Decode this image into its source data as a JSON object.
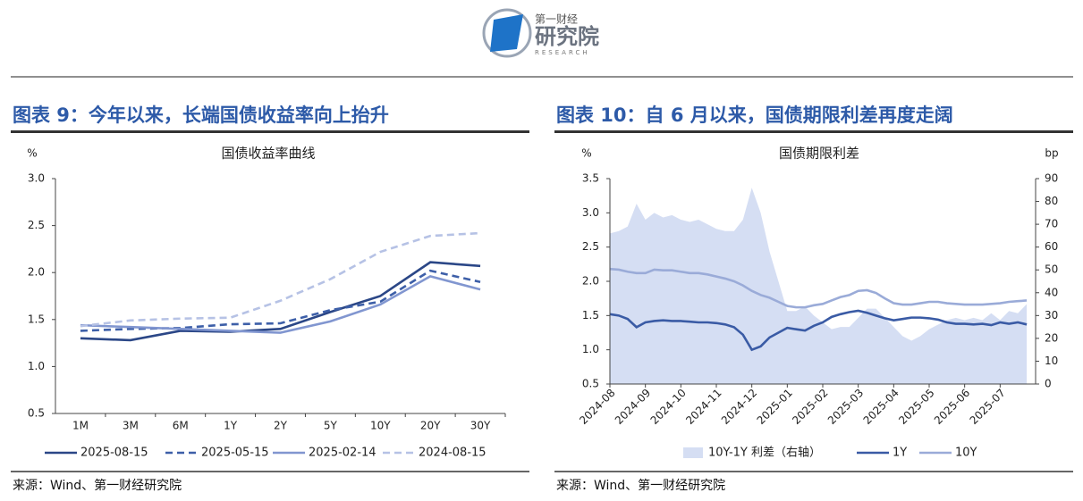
{
  "header": {
    "brand": "第一财经",
    "name": "研究院",
    "sub": "RESEARCH"
  },
  "chart_data": [
    {
      "type": "line",
      "caption": "图表 9：今年以来，长端国债收益率向上抬升",
      "title": "国债收益率曲线",
      "ylabel": "%",
      "source": "来源：Wind、第一财经研究院",
      "categories": [
        "1M",
        "3M",
        "6M",
        "1Y",
        "2Y",
        "5Y",
        "10Y",
        "20Y",
        "30Y"
      ],
      "series": [
        {
          "name": "2025-08-15",
          "color": "#2b4787",
          "style": "solid",
          "values": [
            1.3,
            1.28,
            1.38,
            1.37,
            1.4,
            1.58,
            1.75,
            2.11,
            2.07
          ]
        },
        {
          "name": "2025-05-15",
          "color": "#3d5fa8",
          "style": "dashed",
          "values": [
            1.38,
            1.4,
            1.41,
            1.45,
            1.46,
            1.6,
            1.69,
            2.02,
            1.9
          ]
        },
        {
          "name": "2025-02-14",
          "color": "#8196d0",
          "style": "solid",
          "values": [
            1.44,
            1.42,
            1.4,
            1.38,
            1.36,
            1.48,
            1.66,
            1.96,
            1.82
          ]
        },
        {
          "name": "2024-08-15",
          "color": "#b6c2e5",
          "style": "dashed",
          "values": [
            1.43,
            1.49,
            1.51,
            1.52,
            1.7,
            1.93,
            2.22,
            2.39,
            2.42
          ]
        }
      ],
      "ylim": [
        0.5,
        3.0
      ],
      "yticks": [
        {
          "value": 3.0,
          "label": "3.0"
        },
        2.5,
        {
          "value": 2.0,
          "label": "2.0"
        },
        1.5,
        {
          "value": 1.0,
          "label": "1.0"
        },
        0.5
      ],
      "grid": false,
      "legend": "bottom"
    },
    {
      "type": "line",
      "caption": "图表 10：自 6 月以来，国债期限利差再度走阔",
      "title": "国债期限利差",
      "ylabel": "%",
      "y2label": "bp",
      "source": "来源：Wind、第一财经研究院",
      "categories": [
        "2024-08",
        null,
        null,
        null,
        "2024-09",
        null,
        null,
        null,
        "2024-10",
        null,
        null,
        null,
        "2024-11",
        null,
        null,
        null,
        "2024-12",
        null,
        null,
        null,
        "2025-01",
        null,
        null,
        null,
        "2025-02",
        null,
        null,
        null,
        "2025-03",
        null,
        null,
        null,
        "2025-04",
        null,
        null,
        null,
        "2025-05",
        null,
        null,
        null,
        "2025-06",
        null,
        null,
        null,
        "2025-07",
        null,
        null,
        null
      ],
      "series": [
        {
          "name": "10Y-1Y 利差（右轴）",
          "color": "#d5def3",
          "style": "area",
          "axis": "y2",
          "values": [
            66,
            67,
            69,
            79,
            72,
            75,
            73,
            74,
            72,
            71,
            72,
            70,
            68,
            67,
            67,
            72,
            86,
            75,
            58,
            45,
            32,
            32,
            34,
            30,
            27,
            24,
            25,
            25,
            29,
            33,
            33,
            29,
            25,
            21,
            19,
            21,
            24,
            26,
            28,
            29,
            28,
            29,
            28,
            31,
            28,
            32,
            31,
            35
          ]
        },
        {
          "name": "1Y",
          "color": "#3a5ba5",
          "style": "solid",
          "values": [
            1.52,
            1.5,
            1.45,
            1.33,
            1.4,
            1.42,
            1.43,
            1.42,
            1.42,
            1.41,
            1.4,
            1.4,
            1.39,
            1.37,
            1.33,
            1.22,
            1.0,
            1.05,
            1.18,
            1.25,
            1.32,
            1.3,
            1.28,
            1.35,
            1.4,
            1.48,
            1.52,
            1.55,
            1.57,
            1.54,
            1.5,
            1.46,
            1.43,
            1.45,
            1.47,
            1.47,
            1.46,
            1.44,
            1.4,
            1.38,
            1.38,
            1.37,
            1.38,
            1.36,
            1.4,
            1.38,
            1.4,
            1.37
          ]
        },
        {
          "name": "10Y",
          "color": "#9aabd8",
          "style": "solid",
          "values": [
            2.18,
            2.17,
            2.14,
            2.12,
            2.12,
            2.17,
            2.16,
            2.16,
            2.14,
            2.12,
            2.12,
            2.1,
            2.07,
            2.04,
            2.0,
            1.94,
            1.86,
            1.8,
            1.76,
            1.7,
            1.64,
            1.62,
            1.62,
            1.65,
            1.67,
            1.72,
            1.77,
            1.8,
            1.86,
            1.87,
            1.83,
            1.75,
            1.68,
            1.66,
            1.66,
            1.68,
            1.7,
            1.7,
            1.68,
            1.67,
            1.66,
            1.66,
            1.66,
            1.67,
            1.68,
            1.7,
            1.71,
            1.72
          ]
        }
      ],
      "ylim": [
        0.5,
        3.5
      ],
      "yticks": [
        {
          "value": 3.5,
          "label": "3.5"
        },
        {
          "value": 3.0,
          "label": "3.0"
        },
        2.5,
        {
          "value": 2.0,
          "label": "2.0"
        },
        1.5,
        {
          "value": 1.0,
          "label": "1.0"
        },
        0.5
      ],
      "y2lim": [
        0,
        90
      ],
      "y2ticks": [
        90,
        80,
        70,
        60,
        50,
        40,
        30,
        20,
        10,
        0
      ],
      "grid": false,
      "legend": "bottom"
    }
  ]
}
